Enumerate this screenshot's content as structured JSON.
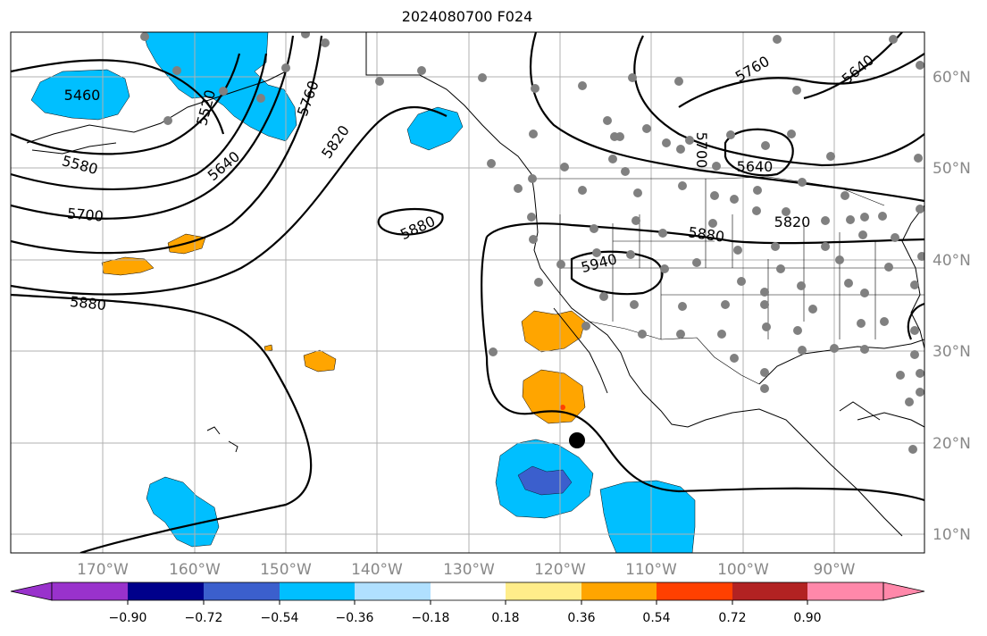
{
  "title": "2024080700 F024",
  "map": {
    "lon_range": [
      -180,
      -80
    ],
    "lat_range": [
      8,
      65
    ],
    "lon_ticks": [
      "170°W",
      "160°W",
      "150°W",
      "140°W",
      "130°W",
      "120°W",
      "110°W",
      "100°W",
      "90°W"
    ],
    "lat_ticks": [
      "60°N",
      "50°N",
      "40°N",
      "30°N",
      "20°N",
      "10°N"
    ],
    "gridlines": true,
    "contour_labels": [
      "5460",
      "5580",
      "5640",
      "5760",
      "5820",
      "5700",
      "5880",
      "5880",
      "5880",
      "5940",
      "5640",
      "5760",
      "5700",
      "5640",
      "5820",
      "5880",
      "5520"
    ],
    "contour_colors": {
      "line": "#000000",
      "station": "#808080",
      "marker": "#000000"
    },
    "marker": {
      "lon": -118,
      "lat": 20.3
    }
  },
  "colorbar": {
    "ticks": [
      "−0.90",
      "−0.72",
      "−0.54",
      "−0.36",
      "−0.18",
      "0.18",
      "0.36",
      "0.54",
      "0.72",
      "0.90"
    ],
    "colors": [
      "#9932cc",
      "#00008b",
      "#3b5fcd",
      "#00bfff",
      "#b0e0ff",
      "#ffffff",
      "#ffed8a",
      "#ffa500",
      "#ff4000",
      "#b22222",
      "#ff88aa"
    ]
  }
}
